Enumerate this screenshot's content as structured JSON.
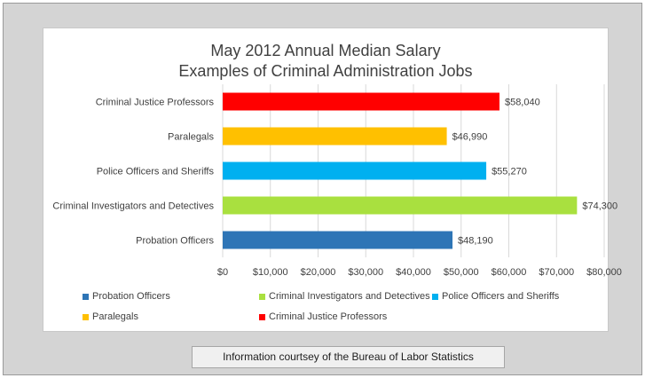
{
  "chart_data": {
    "type": "bar",
    "orientation": "horizontal",
    "title": "May 2012 Annual Median Salary",
    "subtitle": "Examples of Criminal Administration Jobs",
    "categories": [
      "Criminal Justice Professors",
      "Paralegals",
      "Police Officers and Sheriffs",
      "Criminal Investigators and Detectives",
      "Probation Officers"
    ],
    "values": [
      58040,
      46990,
      55270,
      74300,
      48190
    ],
    "data_labels": [
      "$58,040",
      "$46,990",
      "$55,270",
      "$74,300",
      "$48,190"
    ],
    "colors": [
      "#ff0000",
      "#ffc000",
      "#00b0f0",
      "#a9e03f",
      "#2e75b6"
    ],
    "xlim": [
      0,
      80000
    ],
    "x_ticks": [
      0,
      10000,
      20000,
      30000,
      40000,
      50000,
      60000,
      70000,
      80000
    ],
    "x_tick_labels": [
      "$0",
      "$10,000",
      "$20,000",
      "$30,000",
      "$40,000",
      "$50,000",
      "$60,000",
      "$70,000",
      "$80,000"
    ],
    "xlabel": "",
    "ylabel": "",
    "grid": true,
    "legend_position": "bottom",
    "legend": [
      {
        "label": "Probation Officers",
        "color": "#2e75b6"
      },
      {
        "label": "Criminal Investigators and Detectives",
        "color": "#a9e03f"
      },
      {
        "label": "Police Officers and Sheriffs",
        "color": "#00b0f0"
      },
      {
        "label": "Paralegals",
        "color": "#ffc000"
      },
      {
        "label": "Criminal Justice Professors",
        "color": "#ff0000"
      }
    ]
  },
  "footer": {
    "source_text": "Information courtsey of the Bureau of Labor Statistics"
  }
}
